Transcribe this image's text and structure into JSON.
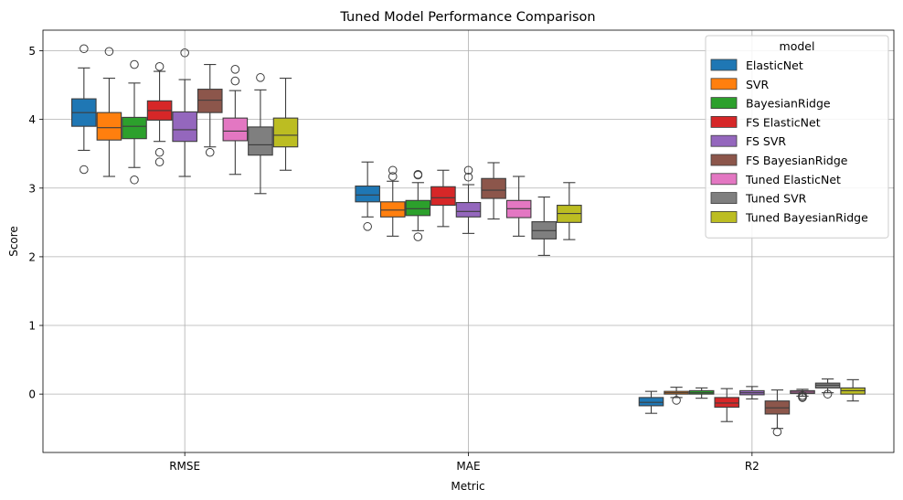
{
  "chart_data": {
    "type": "box",
    "title": "Tuned Model Performance Comparison",
    "xlabel": "Metric",
    "ylabel": "Score",
    "categories": [
      "RMSE",
      "MAE",
      "R2"
    ],
    "ylim": [
      -0.85,
      5.3
    ],
    "yticks": [
      "0",
      "1",
      "2",
      "3",
      "4",
      "5"
    ],
    "grid": true,
    "legend": {
      "title": "model",
      "placement": "top-right"
    },
    "series": [
      {
        "name": "ElasticNet",
        "color": "#1f77b4",
        "stats": [
          {
            "whislo": 3.55,
            "q1": 3.9,
            "med": 4.1,
            "q3": 4.3,
            "whishi": 4.75,
            "fliers": [
              5.03,
              3.27
            ]
          },
          {
            "whislo": 2.58,
            "q1": 2.8,
            "med": 2.9,
            "q3": 3.03,
            "whishi": 3.38,
            "fliers": [
              2.44
            ]
          },
          {
            "whislo": -0.28,
            "q1": -0.17,
            "med": -0.12,
            "q3": -0.05,
            "whishi": 0.04,
            "fliers": []
          }
        ]
      },
      {
        "name": "SVR",
        "color": "#ff7f0e",
        "stats": [
          {
            "whislo": 3.17,
            "q1": 3.7,
            "med": 3.88,
            "q3": 4.1,
            "whishi": 4.6,
            "fliers": [
              4.99
            ]
          },
          {
            "whislo": 2.3,
            "q1": 2.58,
            "med": 2.68,
            "q3": 2.8,
            "whishi": 3.1,
            "fliers": [
              3.26,
              3.17
            ]
          },
          {
            "whislo": -0.05,
            "q1": 0.0,
            "med": 0.02,
            "q3": 0.04,
            "whishi": 0.1,
            "fliers": [
              -0.09
            ]
          }
        ]
      },
      {
        "name": "BayesianRidge",
        "color": "#2ca02c",
        "stats": [
          {
            "whislo": 3.3,
            "q1": 3.72,
            "med": 3.9,
            "q3": 4.03,
            "whishi": 4.53,
            "fliers": [
              4.8,
              3.12
            ]
          },
          {
            "whislo": 2.38,
            "q1": 2.6,
            "med": 2.7,
            "q3": 2.82,
            "whishi": 3.08,
            "fliers": [
              3.2,
              3.19,
              2.29
            ]
          },
          {
            "whislo": -0.06,
            "q1": 0.0,
            "med": 0.02,
            "q3": 0.05,
            "whishi": 0.09,
            "fliers": []
          }
        ]
      },
      {
        "name": "FS ElasticNet",
        "color": "#d62728",
        "stats": [
          {
            "whislo": 3.68,
            "q1": 3.99,
            "med": 4.13,
            "q3": 4.27,
            "whishi": 4.7,
            "fliers": [
              4.77,
              3.52,
              3.38
            ]
          },
          {
            "whislo": 2.44,
            "q1": 2.75,
            "med": 2.86,
            "q3": 3.02,
            "whishi": 3.26,
            "fliers": []
          },
          {
            "whislo": -0.4,
            "q1": -0.19,
            "med": -0.13,
            "q3": -0.05,
            "whishi": 0.08,
            "fliers": []
          }
        ]
      },
      {
        "name": "FS SVR",
        "color": "#9467bd",
        "stats": [
          {
            "whislo": 3.17,
            "q1": 3.68,
            "med": 3.85,
            "q3": 4.11,
            "whishi": 4.58,
            "fliers": [
              4.97
            ]
          },
          {
            "whislo": 2.34,
            "q1": 2.58,
            "med": 2.66,
            "q3": 2.79,
            "whishi": 3.05,
            "fliers": [
              3.26,
              3.16
            ]
          },
          {
            "whislo": -0.07,
            "q1": -0.01,
            "med": 0.02,
            "q3": 0.05,
            "whishi": 0.11,
            "fliers": []
          }
        ]
      },
      {
        "name": "FS BayesianRidge",
        "color": "#8c564b",
        "stats": [
          {
            "whislo": 3.6,
            "q1": 4.1,
            "med": 4.28,
            "q3": 4.44,
            "whishi": 4.8,
            "fliers": [
              3.52
            ]
          },
          {
            "whislo": 2.55,
            "q1": 2.85,
            "med": 2.97,
            "q3": 3.14,
            "whishi": 3.37,
            "fliers": []
          },
          {
            "whislo": -0.5,
            "q1": -0.29,
            "med": -0.2,
            "q3": -0.1,
            "whishi": 0.06,
            "fliers": [
              -0.55
            ]
          }
        ]
      },
      {
        "name": "Tuned ElasticNet",
        "color": "#e377c2",
        "stats": [
          {
            "whislo": 3.2,
            "q1": 3.69,
            "med": 3.83,
            "q3": 4.02,
            "whishi": 4.42,
            "fliers": [
              4.73,
              4.56
            ]
          },
          {
            "whislo": 2.3,
            "q1": 2.57,
            "med": 2.7,
            "q3": 2.82,
            "whishi": 3.17,
            "fliers": []
          },
          {
            "whislo": -0.03,
            "q1": 0.01,
            "med": 0.03,
            "q3": 0.05,
            "whishi": 0.07,
            "fliers": [
              -0.04,
              -0.02,
              -0.05
            ]
          }
        ]
      },
      {
        "name": "Tuned SVR",
        "color": "#7f7f7f",
        "stats": [
          {
            "whislo": 2.92,
            "q1": 3.48,
            "med": 3.63,
            "q3": 3.89,
            "whishi": 4.43,
            "fliers": [
              4.61
            ]
          },
          {
            "whislo": 2.02,
            "q1": 2.26,
            "med": 2.38,
            "q3": 2.51,
            "whishi": 2.87,
            "fliers": []
          },
          {
            "whislo": 0.02,
            "q1": 0.09,
            "med": 0.13,
            "q3": 0.16,
            "whishi": 0.22,
            "fliers": [
              0.0
            ]
          }
        ]
      },
      {
        "name": "Tuned BayesianRidge",
        "color": "#bcbd22",
        "stats": [
          {
            "whislo": 3.26,
            "q1": 3.6,
            "med": 3.77,
            "q3": 4.02,
            "whishi": 4.6,
            "fliers": []
          },
          {
            "whislo": 2.25,
            "q1": 2.5,
            "med": 2.63,
            "q3": 2.75,
            "whishi": 3.08,
            "fliers": []
          },
          {
            "whislo": -0.1,
            "q1": 0.0,
            "med": 0.05,
            "q3": 0.09,
            "whishi": 0.21,
            "fliers": []
          }
        ]
      }
    ]
  }
}
